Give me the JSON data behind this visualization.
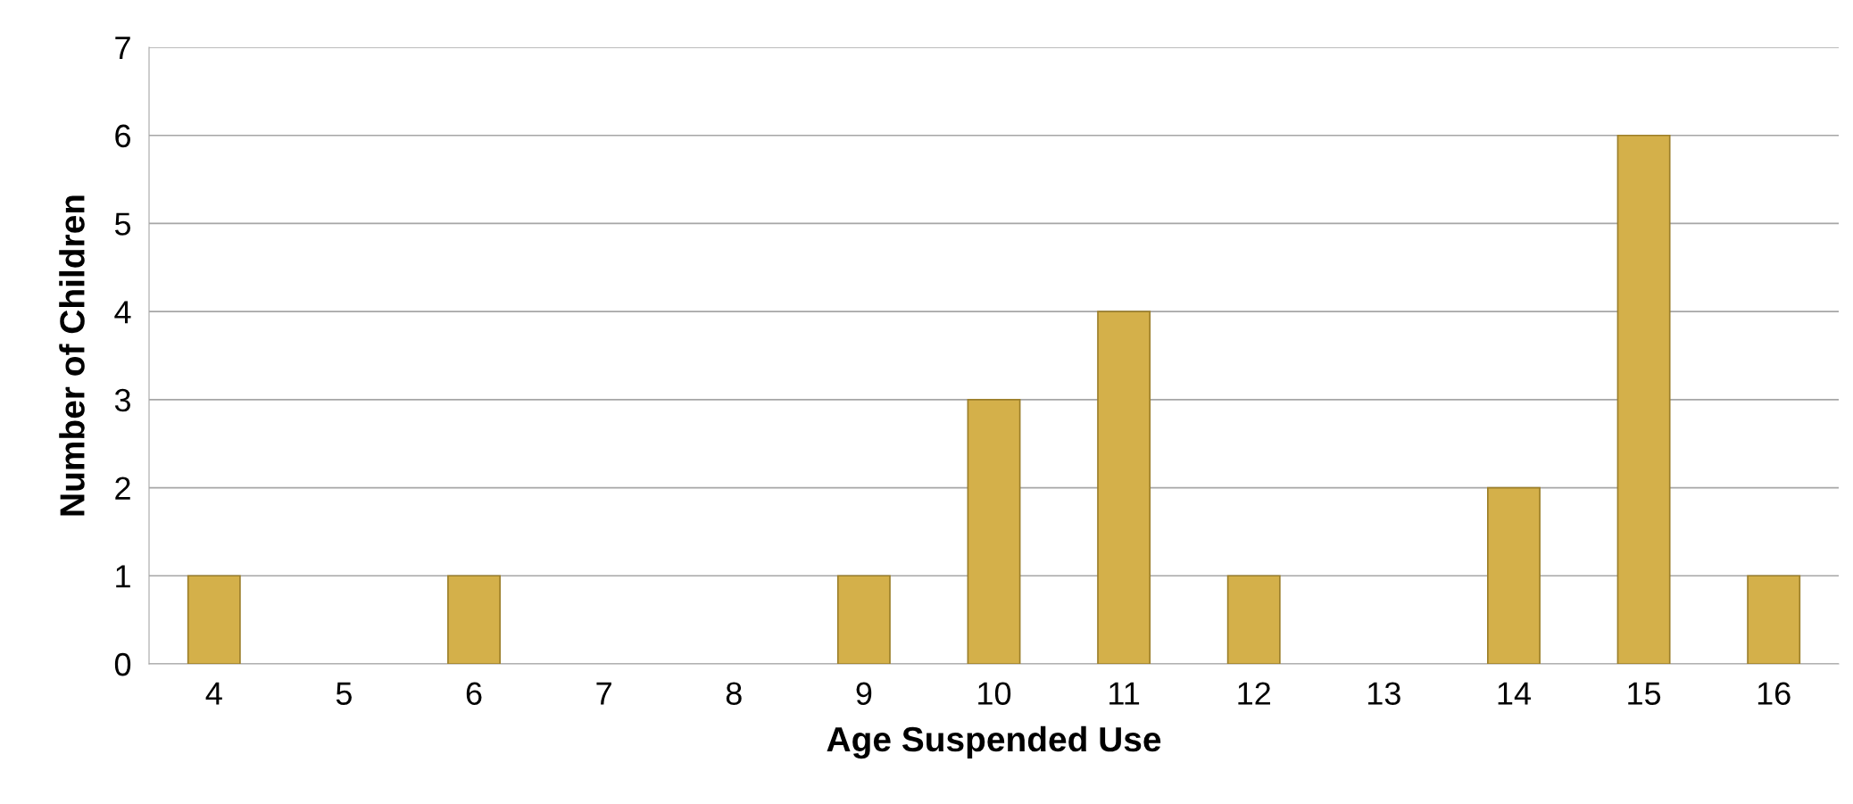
{
  "chart_data": {
    "type": "bar",
    "xlabel": "Age Suspended Use",
    "ylabel": "Number of Children",
    "categories": [
      "4",
      "5",
      "6",
      "7",
      "8",
      "9",
      "10",
      "11",
      "12",
      "13",
      "14",
      "15",
      "16"
    ],
    "values": [
      1,
      0,
      1,
      0,
      0,
      1,
      3,
      4,
      1,
      0,
      2,
      6,
      1
    ],
    "color": "#d4b04a",
    "ylim": [
      0,
      7
    ],
    "yticks": [
      0,
      1,
      2,
      3,
      4,
      5,
      6,
      7
    ],
    "grid": "y"
  }
}
